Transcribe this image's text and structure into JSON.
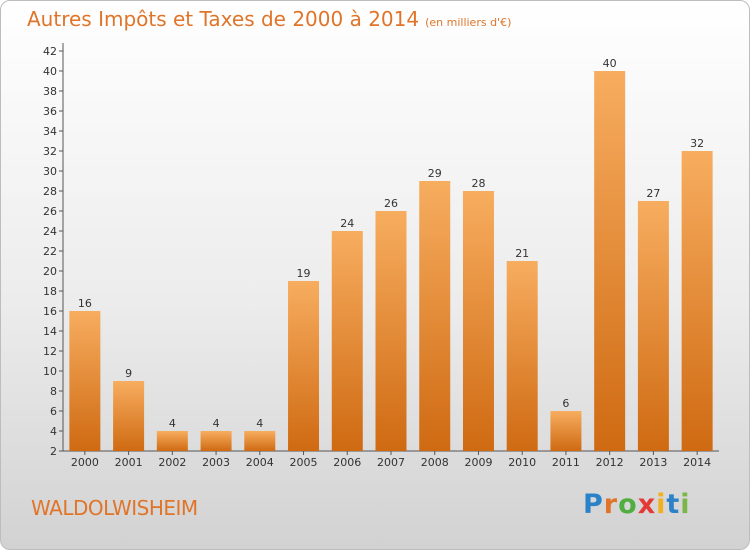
{
  "title": "Autres Impôts et Taxes de 2000 à 2014",
  "title_unit": "(en milliers d'€)",
  "town": "WALDOLWISHEIM",
  "logo": "Proxiti",
  "colors": {
    "bar": "#f08a2c",
    "bar_light": "#f7ad5f",
    "bar_dark": "#cf6a12",
    "text": "#e0752a"
  },
  "chart_data": {
    "type": "bar",
    "categories": [
      "2000",
      "2001",
      "2002",
      "2003",
      "2004",
      "2005",
      "2006",
      "2007",
      "2008",
      "2009",
      "2010",
      "2011",
      "2012",
      "2013",
      "2014"
    ],
    "values": [
      16,
      9,
      4,
      4,
      4,
      19,
      24,
      26,
      29,
      28,
      21,
      6,
      40,
      27,
      32
    ],
    "ylim": [
      2,
      42
    ],
    "yticks": [
      2,
      4,
      6,
      8,
      10,
      12,
      14,
      16,
      18,
      20,
      22,
      24,
      26,
      28,
      30,
      32,
      34,
      36,
      38,
      40,
      42
    ],
    "grid": false,
    "data_labels": true
  }
}
